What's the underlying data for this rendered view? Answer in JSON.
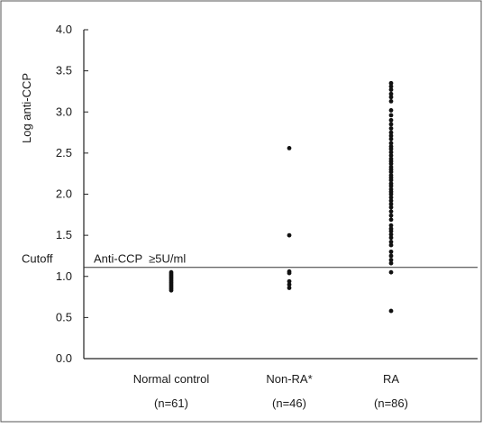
{
  "chart_data": {
    "type": "scatter",
    "ylabel": "Log anti-CCP",
    "ylim": [
      0,
      4
    ],
    "yticks": [
      "0.0",
      "0.5",
      "1.0",
      "1.5",
      "2.0",
      "2.5",
      "3.0",
      "3.5",
      "4.0"
    ],
    "cutoff": {
      "value": 1.11,
      "label": "Cutoff",
      "text": "Anti-CCP  ≥5U/ml"
    },
    "categories": [
      {
        "name": "Normal control",
        "n_label": "(n=61)"
      },
      {
        "name": "Non-RA*",
        "n_label": "(n=46)"
      },
      {
        "name": "RA",
        "n_label": "(n=86)"
      }
    ],
    "series": [
      {
        "values": [
          1.05,
          1.03,
          1.01,
          0.99,
          0.97,
          0.95,
          0.93,
          0.91,
          0.89,
          0.87,
          0.85,
          0.83
        ]
      },
      {
        "values": [
          2.56,
          1.5,
          1.06,
          1.04,
          0.94,
          0.9,
          0.86
        ]
      },
      {
        "values": [
          3.35,
          3.31,
          3.27,
          3.22,
          3.18,
          3.13,
          3.02,
          2.96,
          2.9,
          2.85,
          2.8,
          2.75,
          2.71,
          2.67,
          2.62,
          2.58,
          2.55,
          2.51,
          2.47,
          2.43,
          2.4,
          2.37,
          2.33,
          2.3,
          2.27,
          2.23,
          2.2,
          2.17,
          2.13,
          2.1,
          2.06,
          2.03,
          2.0,
          1.96,
          1.92,
          1.88,
          1.84,
          1.79,
          1.74,
          1.69,
          1.62,
          1.58,
          1.55,
          1.51,
          1.47,
          1.42,
          1.38,
          1.3,
          1.25,
          1.2,
          1.16,
          1.05,
          0.58
        ]
      }
    ]
  }
}
